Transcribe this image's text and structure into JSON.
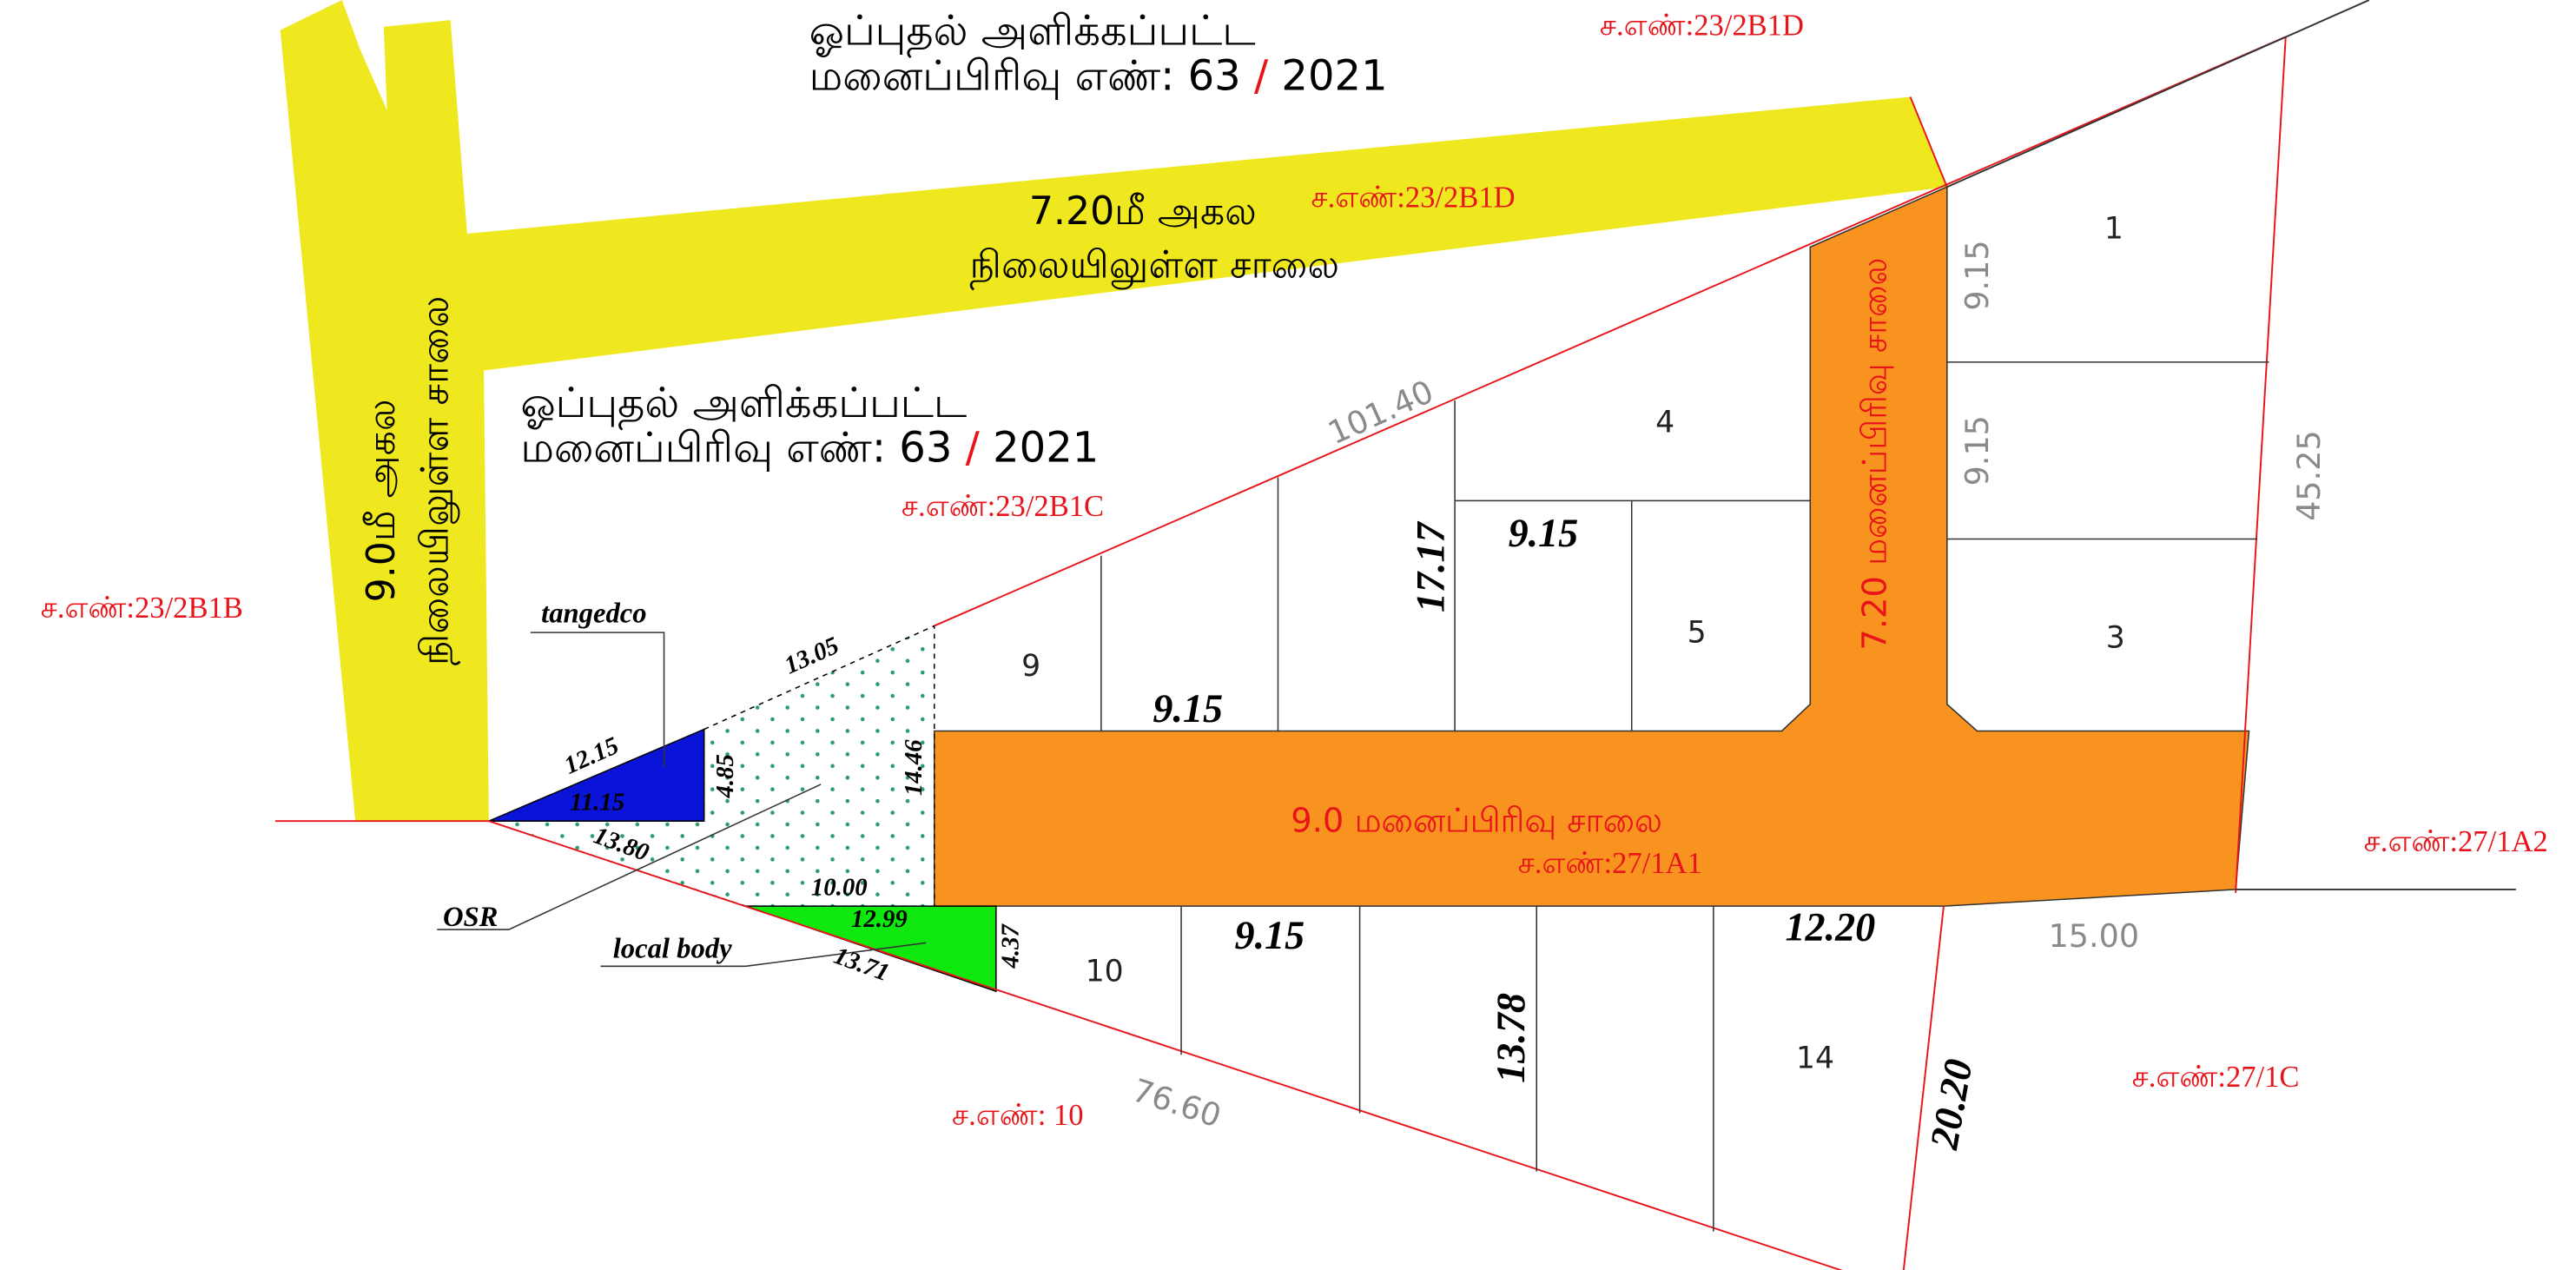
{
  "approvals": [
    {
      "line1": "ஓப்புதல்  அளிக்கப்பட்ட",
      "line2": "மனைப்பிரிவு  எண்:  63 ",
      "sep": "/",
      "year": " 2021"
    },
    {
      "line1": "ஓப்புதல்  அளிக்கப்பட்ட",
      "line2": "மனைப்பிரிவு  எண்:  63 ",
      "sep": "/",
      "year": " 2021"
    }
  ],
  "survey_numbers": [
    "ச.எண்:23/2B1D",
    "ச.எண்:23/2B1D",
    "ச.எண்:23/2B1C",
    "ச.எண்:23/2B1B",
    "ச.எண்:27/1A1",
    "ச.எண்:27/1A2",
    "ச.எண்:27/1C",
    "ச.எண்: 10"
  ],
  "roads": {
    "existing_top": {
      "line1": "7.20மீ  அகல",
      "line2": "நிலையிலுள்ள  சாலை"
    },
    "existing_left": {
      "line1": "9.0மீ  அகல",
      "line2": "நிலையிலுள்ள  சாலை"
    },
    "layout_vertical": "7.20  மனைப்பிரிவு  சாலை",
    "layout_horizontal": "9.0  மனைப்பிரிவு  சாலை"
  },
  "plots": [
    "1",
    "3",
    "4",
    "5",
    "9",
    "10",
    "14"
  ],
  "reserved": [
    "tangedco",
    "OSR",
    "local body"
  ],
  "boundary_dimensions": [
    "101.40",
    "9.15",
    "9.15",
    "45.25",
    "15.00",
    "76.60"
  ],
  "plot_dimensions": [
    "17.17",
    "9.15",
    "9.15",
    "9.15",
    "13.78",
    "12.20",
    "20.20"
  ],
  "reserve_dimensions": [
    "13.05",
    "12.15",
    "11.15",
    "4.85",
    "14.46",
    "13.80",
    "10.00",
    "12.99",
    "4.37",
    "13.71"
  ]
}
